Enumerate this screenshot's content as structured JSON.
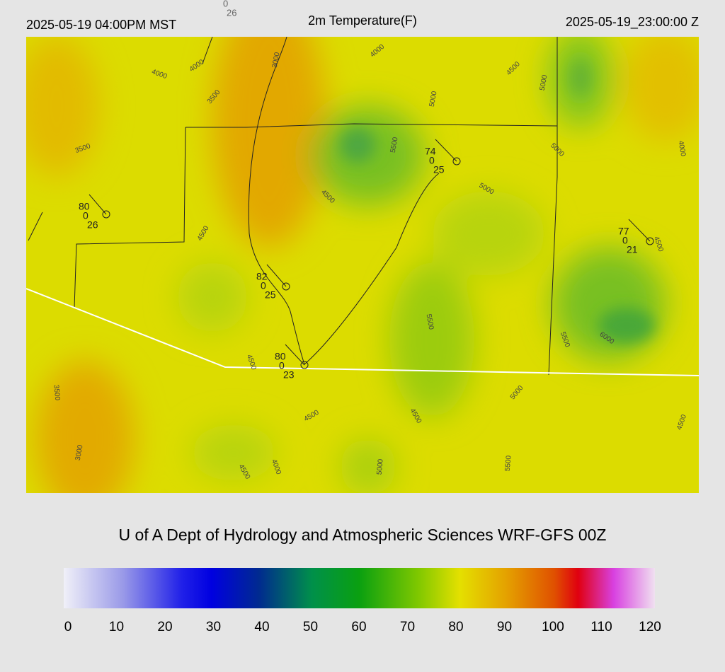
{
  "header": {
    "local_time": "2025-05-19 04:00PM MST",
    "title": "2m Temperature(F)",
    "valid_time": "2025-05-19_23:00:00 Z"
  },
  "top_station": {
    "wind": 0,
    "dew": 26
  },
  "stations": [
    {
      "temp": 80,
      "wind": 0,
      "dew": 26
    },
    {
      "temp": 74,
      "wind": 0,
      "dew": 25
    },
    {
      "temp": 77,
      "wind": 0,
      "dew": 21
    },
    {
      "temp": 82,
      "wind": 0,
      "dew": 25
    },
    {
      "temp": 80,
      "wind": 0,
      "dew": 23
    }
  ],
  "contour_labels": [
    4000,
    4000,
    3000,
    3500,
    4000,
    4500,
    5000,
    5000,
    5500,
    5000,
    3500,
    4500,
    5000,
    4000,
    4500,
    4500,
    5500,
    5500,
    6000,
    4500,
    3500,
    4500,
    4500,
    5000,
    4500,
    3000,
    4000,
    4500,
    5000,
    5500
  ],
  "footer": "U of A Dept of Hydrology and Atmospheric Sciences WRF-GFS 00Z",
  "colorbar": {
    "range": [
      0,
      120
    ],
    "ticks": [
      0,
      10,
      20,
      30,
      40,
      50,
      60,
      70,
      80,
      90,
      100,
      110,
      120
    ]
  }
}
